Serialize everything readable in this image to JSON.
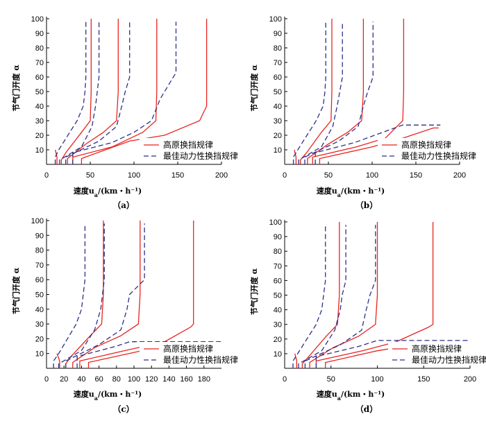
{
  "colors": {
    "plateau": "#e8231e",
    "optimal": "#2b2f86"
  },
  "chart_data": [
    {
      "type": "line",
      "caption": "（a）",
      "ylabel": "节气门开度 α",
      "xlabel": "速度u",
      "xlabel_sub": "a",
      "xlabel_unit": "/(km・h⁻¹)",
      "xticks": [
        0,
        50,
        100,
        150,
        200
      ],
      "yticks": [
        10,
        20,
        30,
        40,
        50,
        60,
        70,
        80,
        90,
        100
      ],
      "xlim": [
        0,
        200
      ],
      "ylim": [
        0,
        100
      ],
      "legend": {
        "position": "lower-right",
        "entries": [
          "高原换挡规律",
          "最佳动力性换挡规律"
        ]
      },
      "series": [
        {
          "name": "高原换挡规律",
          "style": "solid",
          "curves": [
            {
              "x": [
                12,
                12,
                10
              ],
              "y": [
                0,
                5,
                10
              ]
            },
            {
              "x": [
                17,
                17,
                22,
                40,
                50,
                51,
                51
              ],
              "y": [
                0,
                3,
                8,
                22,
                30,
                50,
                100
              ]
            },
            {
              "x": [
                24,
                24,
                45,
                65,
                80,
                82,
                82
              ],
              "y": [
                0,
                4,
                14,
                22,
                30,
                50,
                100
              ]
            },
            {
              "x": [
                30,
                30,
                75,
                110,
                125,
                126,
                126
              ],
              "y": [
                0,
                5,
                12,
                22,
                30,
                50,
                100
              ]
            },
            {
              "x": [
                40,
                40,
                95,
                135,
                175,
                183,
                183
              ],
              "y": [
                0,
                4,
                16,
                20,
                30,
                40,
                100
              ]
            }
          ]
        },
        {
          "name": "最佳动力性换挡规律",
          "style": "dashed",
          "curves": [
            {
              "x": [
                10,
                10,
                14,
                35,
                42,
                44,
                45,
                45
              ],
              "y": [
                0,
                5,
                10,
                30,
                40,
                50,
                60,
                98
              ]
            },
            {
              "x": [
                15,
                15,
                40,
                52,
                56,
                58,
                60,
                60
              ],
              "y": [
                0,
                3,
                12,
                26,
                40,
                50,
                60,
                98
              ]
            },
            {
              "x": [
                22,
                22,
                60,
                80,
                86,
                90,
                95,
                95
              ],
              "y": [
                0,
                5,
                16,
                26,
                40,
                50,
                60,
                98
              ]
            },
            {
              "x": [
                30,
                30,
                75,
                100,
                120,
                130,
                148,
                148
              ],
              "y": [
                0,
                8,
                15,
                22,
                30,
                45,
                63,
                98
              ]
            }
          ]
        }
      ]
    },
    {
      "type": "line",
      "caption": "（b）",
      "ylabel": "节气门开度 α",
      "xlabel": "速度u",
      "xlabel_sub": "a",
      "xlabel_unit": "/(km・h⁻¹)",
      "xticks": [
        0,
        50,
        100,
        150,
        200
      ],
      "yticks": [
        10,
        20,
        30,
        40,
        50,
        60,
        70,
        80,
        90,
        100
      ],
      "xlim": [
        0,
        200
      ],
      "ylim": [
        0,
        100
      ],
      "legend": {
        "position": "lower-right",
        "entries": [
          "高原换挡规律",
          "最佳动力性换挡规律"
        ]
      },
      "series": [
        {
          "name": "高原换挡规律",
          "style": "solid",
          "curves": [
            {
              "x": [
                13,
                13,
                11
              ],
              "y": [
                0,
                5,
                10
              ]
            },
            {
              "x": [
                18,
                18,
                25,
                42,
                53,
                54,
                54
              ],
              "y": [
                0,
                3,
                8,
                22,
                30,
                50,
                100
              ]
            },
            {
              "x": [
                26,
                26,
                50,
                72,
                88,
                90,
                90
              ],
              "y": [
                0,
                4,
                14,
                22,
                30,
                50,
                100
              ]
            },
            {
              "x": [
                32,
                32,
                82,
                115,
                135,
                136,
                136
              ],
              "y": [
                0,
                5,
                12,
                18,
                30,
                50,
                100
              ]
            },
            {
              "x": [
                40,
                40,
                100,
                135,
                170,
                176
              ],
              "y": [
                0,
                4,
                12,
                18,
                25,
                25
              ]
            }
          ]
        },
        {
          "name": "最佳动力性换挡规律",
          "style": "dashed",
          "curves": [
            {
              "x": [
                10,
                10,
                15,
                36,
                44,
                46,
                47,
                47
              ],
              "y": [
                0,
                5,
                10,
                30,
                40,
                50,
                60,
                98
              ]
            },
            {
              "x": [
                16,
                16,
                42,
                55,
                60,
                63,
                66,
                66
              ],
              "y": [
                0,
                3,
                12,
                26,
                40,
                50,
                60,
                98
              ]
            },
            {
              "x": [
                23,
                23,
                62,
                84,
                90,
                95,
                101,
                101
              ],
              "y": [
                0,
                5,
                16,
                26,
                40,
                50,
                60,
                98
              ]
            },
            {
              "x": [
                35,
                35,
                80,
                135,
                178
              ],
              "y": [
                0,
                8,
                15,
                27,
                27
              ]
            }
          ]
        }
      ]
    },
    {
      "type": "line",
      "caption": "（c）",
      "ylabel": "节气门开度 α",
      "xlabel": "速度u",
      "xlabel_sub": "a",
      "xlabel_unit": "/(km・h⁻¹)",
      "xticks": [
        0,
        20,
        40,
        60,
        80,
        100,
        120,
        140,
        160,
        180
      ],
      "yticks": [
        10,
        20,
        30,
        40,
        50,
        60,
        70,
        80,
        90,
        100
      ],
      "xlim": [
        0,
        200
      ],
      "ylim": [
        0,
        100
      ],
      "legend": {
        "position": "lower-right",
        "entries": [
          "高原换挡规律",
          "最佳动力性换挡规律"
        ]
      },
      "series": [
        {
          "name": "高原换挡规律",
          "style": "solid",
          "curves": [
            {
              "x": [
                15,
                15,
                12
              ],
              "y": [
                0,
                5,
                10
              ]
            },
            {
              "x": [
                22,
                22,
                28,
                50,
                63,
                65,
                65
              ],
              "y": [
                0,
                3,
                8,
                22,
                30,
                50,
                100
              ]
            },
            {
              "x": [
                30,
                30,
                55,
                85,
                105,
                107,
                107
              ],
              "y": [
                0,
                4,
                14,
                22,
                30,
                50,
                100
              ]
            },
            {
              "x": [
                38,
                38,
                90,
                135,
                165,
                168,
                168
              ],
              "y": [
                0,
                5,
                12,
                18,
                28,
                30,
                100
              ]
            },
            {
              "x": [
                48,
                48,
                110,
                150,
                200
              ],
              "y": [
                0,
                4,
                12,
                16,
                16
              ]
            }
          ]
        },
        {
          "name": "最佳动力性换挡规律",
          "style": "dashed",
          "curves": [
            {
              "x": [
                8,
                8,
                14,
                34,
                40,
                42,
                44,
                44
              ],
              "y": [
                0,
                5,
                10,
                30,
                40,
                50,
                60,
                98
              ]
            },
            {
              "x": [
                14,
                14,
                40,
                55,
                62,
                64,
                66,
                66
              ],
              "y": [
                0,
                3,
                12,
                26,
                40,
                50,
                60,
                98
              ]
            },
            {
              "x": [
                22,
                22,
                60,
                85,
                92,
                95,
                112,
                112
              ],
              "y": [
                0,
                5,
                16,
                26,
                40,
                50,
                60,
                98
              ]
            },
            {
              "x": [
                35,
                35,
                80,
                95,
                200
              ],
              "y": [
                0,
                8,
                15,
                18,
                18
              ]
            }
          ]
        }
      ]
    },
    {
      "type": "line",
      "caption": "（d）",
      "ylabel": "节气门开度 α",
      "xlabel": "速度u",
      "xlabel_sub": "a",
      "xlabel_unit": "/(km・h⁻¹)",
      "xticks": [
        0,
        50,
        100,
        150,
        200
      ],
      "yticks": [
        10,
        20,
        30,
        40,
        50,
        60,
        70,
        80,
        90,
        100
      ],
      "xlim": [
        0,
        200
      ],
      "ylim": [
        0,
        100
      ],
      "legend": {
        "position": "lower-right",
        "entries": [
          "高原换挡规律",
          "最佳动力性换挡规律"
        ]
      },
      "series": [
        {
          "name": "高原换挡规律",
          "style": "solid",
          "curves": [
            {
              "x": [
                13,
                13,
                11
              ],
              "y": [
                0,
                5,
                10
              ]
            },
            {
              "x": [
                19,
                19,
                26,
                45,
                57,
                59,
                59
              ],
              "y": [
                0,
                3,
                8,
                22,
                30,
                50,
                100
              ]
            },
            {
              "x": [
                27,
                27,
                52,
                80,
                98,
                100,
                100
              ],
              "y": [
                0,
                4,
                14,
                22,
                30,
                50,
                100
              ]
            },
            {
              "x": [
                34,
                34,
                84,
                120,
                155,
                160,
                160
              ],
              "y": [
                0,
                5,
                12,
                18,
                28,
                30,
                100
              ]
            },
            {
              "x": [
                44,
                44,
                100,
                140,
                200
              ],
              "y": [
                0,
                4,
                12,
                16,
                16
              ]
            }
          ]
        },
        {
          "name": "最佳动力性换挡规律",
          "style": "dashed",
          "curves": [
            {
              "x": [
                9,
                9,
                14,
                34,
                40,
                42,
                44,
                44
              ],
              "y": [
                0,
                5,
                10,
                30,
                40,
                50,
                60,
                98
              ]
            },
            {
              "x": [
                15,
                15,
                40,
                54,
                60,
                62,
                66,
                66
              ],
              "y": [
                0,
                3,
                12,
                26,
                40,
                50,
                60,
                98
              ]
            },
            {
              "x": [
                22,
                22,
                60,
                83,
                88,
                92,
                98,
                98
              ],
              "y": [
                0,
                5,
                16,
                26,
                40,
                50,
                60,
                98
              ]
            },
            {
              "x": [
                34,
                34,
                80,
                100,
                200
              ],
              "y": [
                0,
                8,
                15,
                19,
                19
              ]
            }
          ]
        }
      ]
    }
  ]
}
